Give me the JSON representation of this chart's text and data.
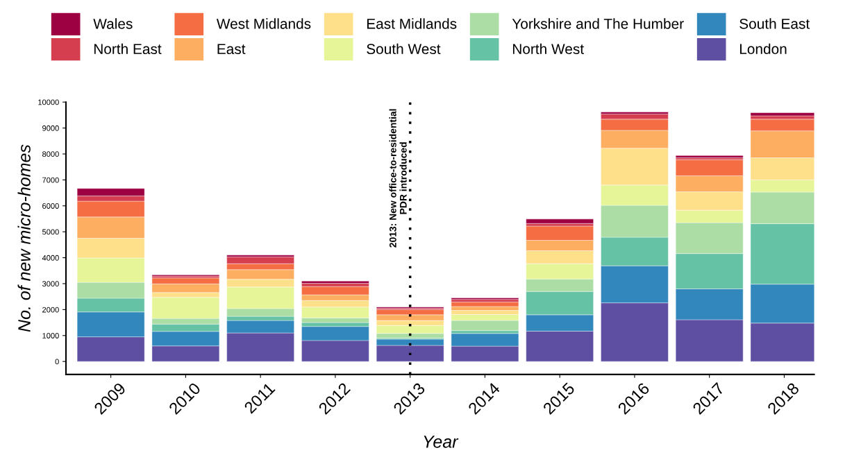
{
  "chart_data": {
    "type": "bar",
    "stacked": true,
    "xlabel": "Year",
    "ylabel": "No. of new micro-homes",
    "categories": [
      "2009",
      "2010",
      "2011",
      "2012",
      "2013",
      "2014",
      "2015",
      "2016",
      "2017",
      "2018"
    ],
    "series": [
      {
        "name": "London",
        "color": "#5e4fa2",
        "values": [
          950,
          600,
          1100,
          810,
          620,
          590,
          1170,
          2260,
          1610,
          1480
        ]
      },
      {
        "name": "South East",
        "color": "#3288bd",
        "values": [
          960,
          560,
          480,
          540,
          240,
          490,
          630,
          1430,
          1190,
          1500
        ]
      },
      {
        "name": "North West",
        "color": "#66c2a5",
        "values": [
          530,
          280,
          160,
          150,
          40,
          110,
          900,
          1100,
          1360,
          2330
        ]
      },
      {
        "name": "Yorkshire and The Humber",
        "color": "#abdda4",
        "values": [
          610,
          220,
          300,
          180,
          180,
          390,
          480,
          1230,
          1190,
          1220
        ]
      },
      {
        "name": "South West",
        "color": "#e6f598",
        "values": [
          940,
          810,
          830,
          420,
          310,
          230,
          590,
          780,
          480,
          470
        ]
      },
      {
        "name": "East Midlands",
        "color": "#fee08b",
        "values": [
          760,
          190,
          300,
          250,
          190,
          160,
          500,
          1420,
          710,
          850
        ]
      },
      {
        "name": "East",
        "color": "#fdae61",
        "values": [
          820,
          330,
          370,
          220,
          220,
          150,
          400,
          690,
          620,
          1040
        ]
      },
      {
        "name": "West Midlands",
        "color": "#f46d43",
        "values": [
          610,
          230,
          230,
          320,
          200,
          170,
          550,
          430,
          620,
          450
        ]
      },
      {
        "name": "North East",
        "color": "#d53e4f",
        "values": [
          200,
          70,
          260,
          120,
          50,
          100,
          100,
          200,
          70,
          130
        ]
      },
      {
        "name": "Wales",
        "color": "#9e0142",
        "values": [
          290,
          50,
          70,
          90,
          50,
          60,
          170,
          80,
          90,
          120
        ]
      }
    ],
    "ylim": [
      -500,
      10000
    ],
    "yticks": [
      0,
      1000,
      2000,
      3000,
      4000,
      5000,
      6000,
      7000,
      8000,
      9000,
      10000
    ],
    "ref_lines": [
      {
        "axis": "x",
        "value": "2013",
        "label": "2013: New office-to-residential\nPDR introduced",
        "color": "#000000",
        "line_style": "dotted"
      }
    ],
    "legend": "top",
    "grid": false
  }
}
